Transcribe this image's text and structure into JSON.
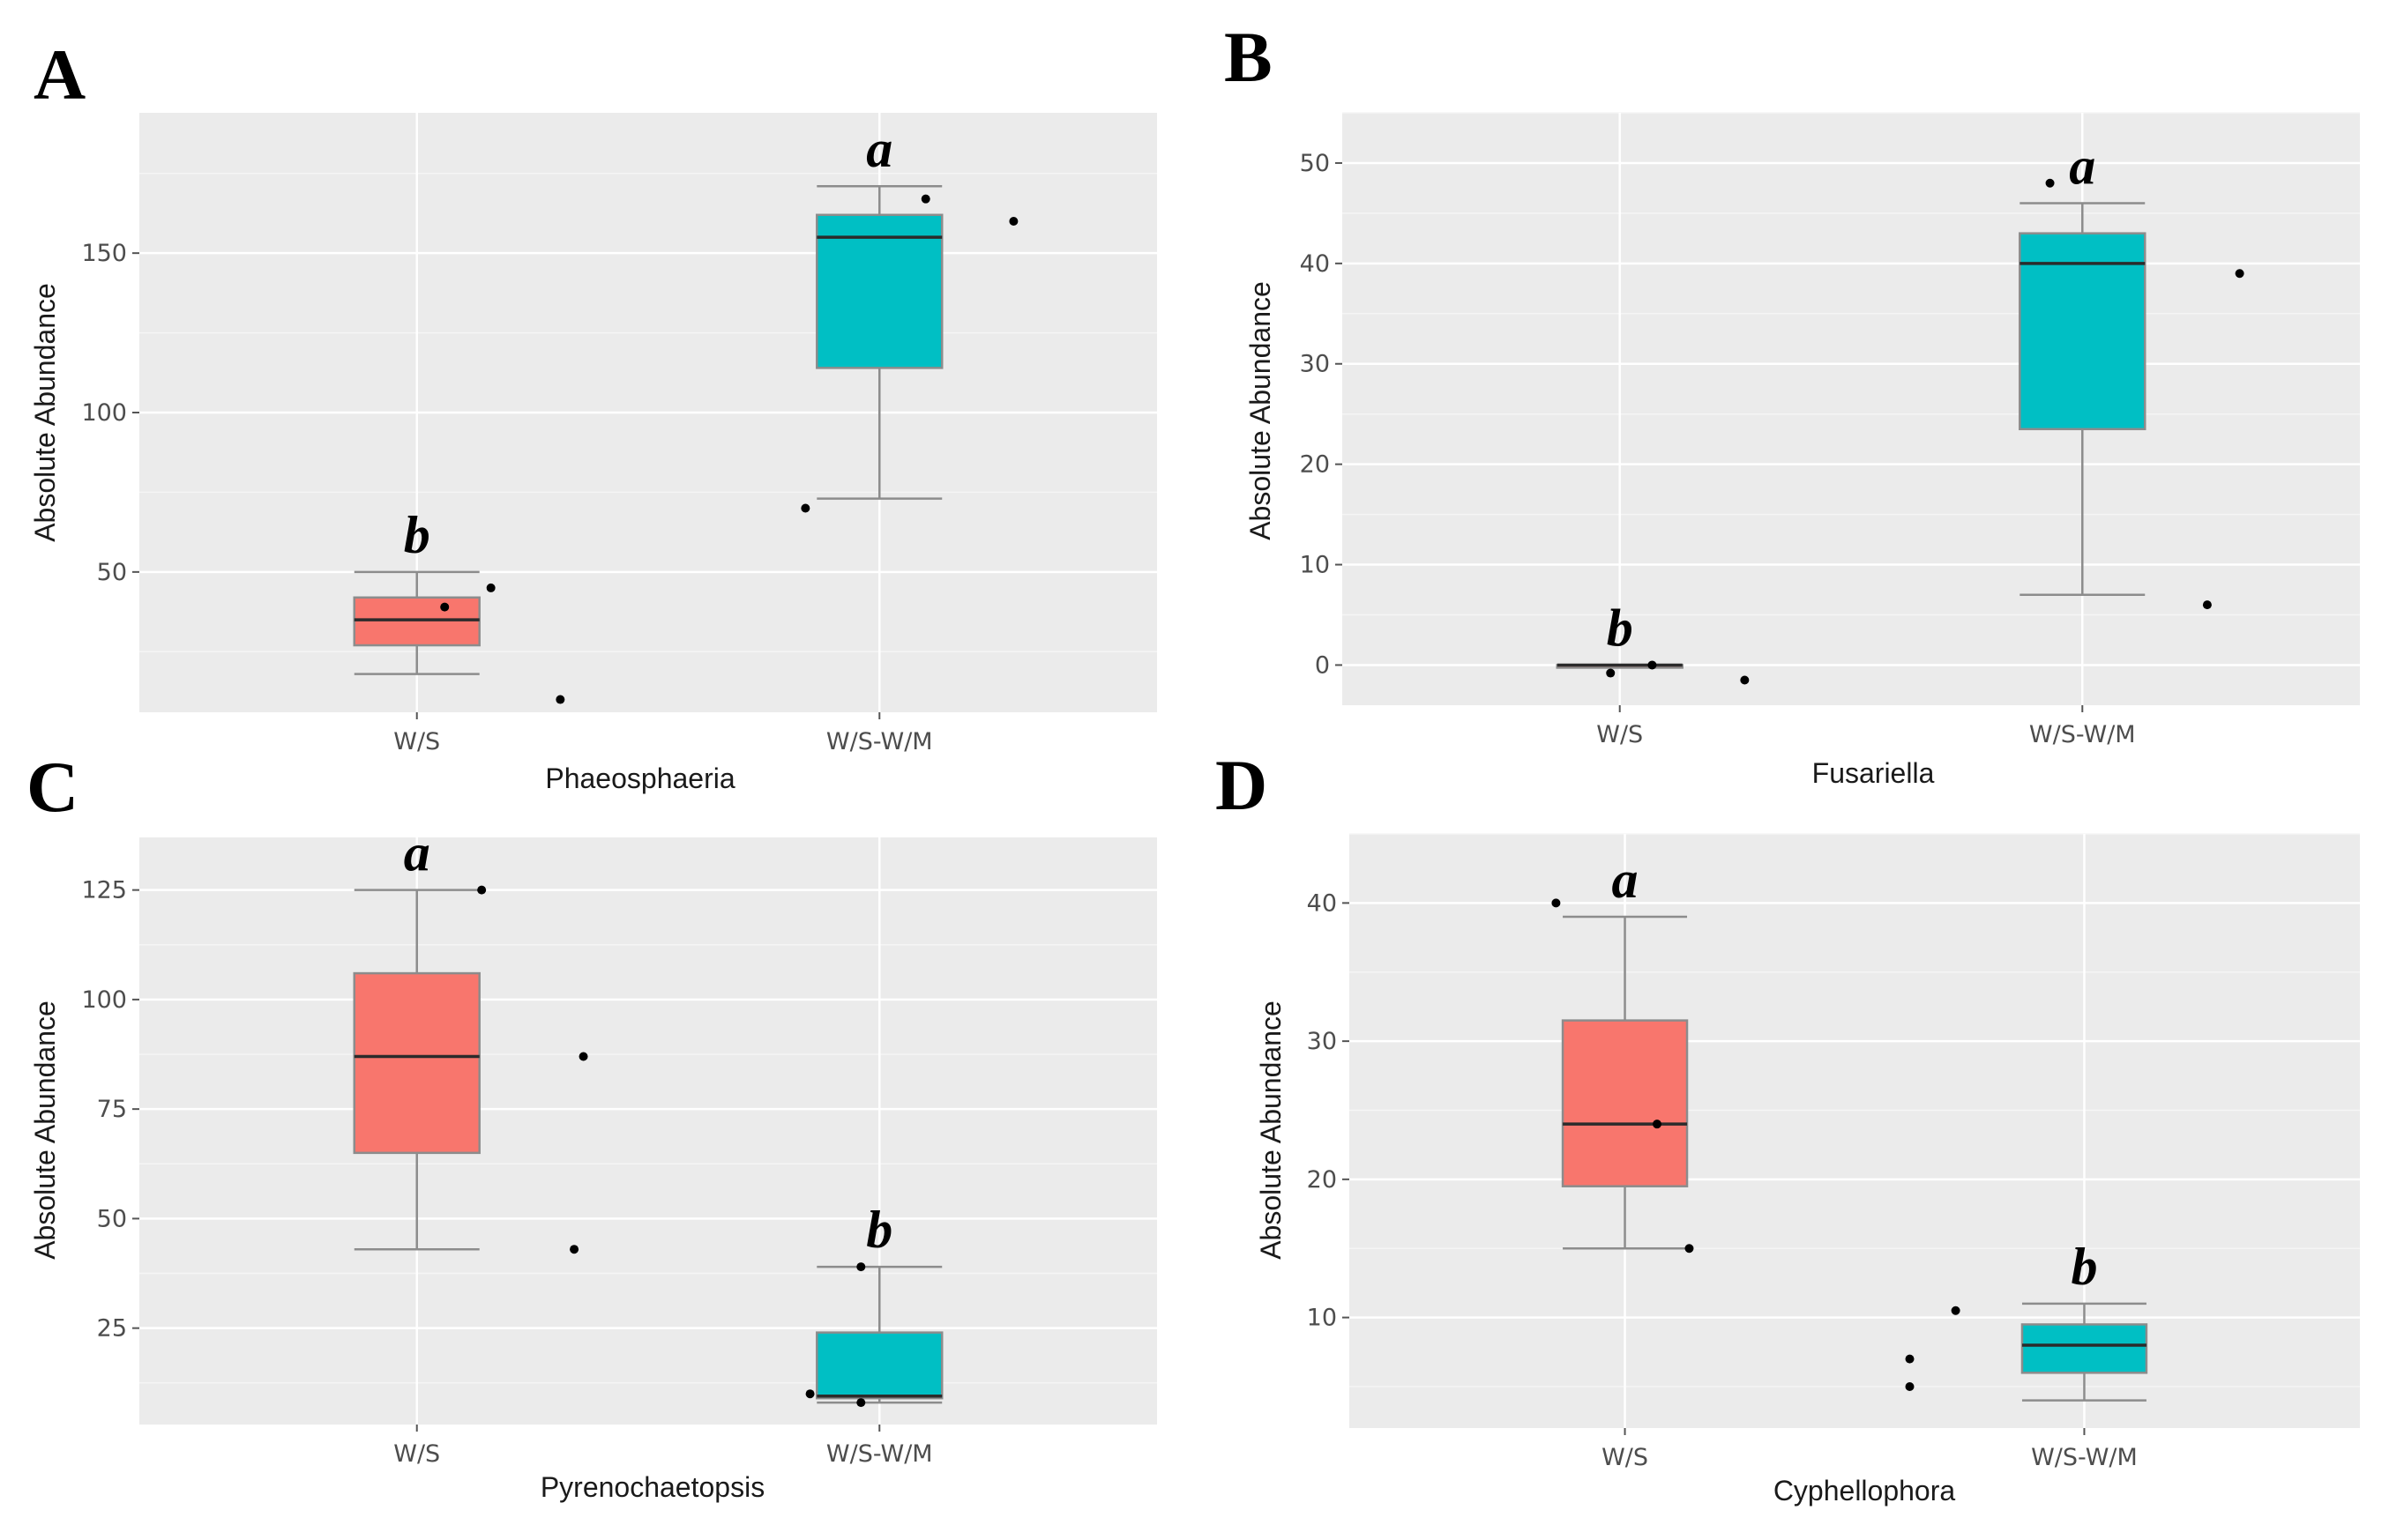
{
  "colors": {
    "panel_bg": "#ebebeb",
    "grid_major": "#ffffff",
    "ws_fill": "#f8766d",
    "wswm_fill": "#00bfc4",
    "box_stroke": "#8c8c8c",
    "median": "#2b2b2b",
    "point": "#000000"
  },
  "chart_data": [
    {
      "panel": "A",
      "type": "box",
      "title": "",
      "xlabel": "Phaeosphaeria",
      "ylabel": "Absolute Abundance",
      "categories": [
        "W/S",
        "W/S-W/M"
      ],
      "ylim": [
        6,
        194
      ],
      "yticks": [
        50,
        100,
        150
      ],
      "boxes": [
        {
          "category": "W/S",
          "fill": "#f8766d",
          "whisker_low": 18,
          "q1": 27,
          "median": 35,
          "q3": 42,
          "whisker_high": 50,
          "sig": "b"
        },
        {
          "category": "W/S-W/M",
          "fill": "#00bfc4",
          "whisker_low": 73,
          "q1": 114,
          "median": 155,
          "q3": 162,
          "whisker_high": 171,
          "sig": "a"
        }
      ],
      "points": [
        {
          "x": 1.06,
          "y": 39
        },
        {
          "x": 1.16,
          "y": 45
        },
        {
          "x": 1.31,
          "y": 10
        },
        {
          "x": 1.84,
          "y": 70
        },
        {
          "x": 2.1,
          "y": 167
        },
        {
          "x": 2.29,
          "y": 160
        }
      ]
    },
    {
      "panel": "B",
      "type": "box",
      "title": "",
      "xlabel": "Fusariella",
      "ylabel": "Absolute Abundance",
      "categories": [
        "W/S",
        "W/S-W/M"
      ],
      "ylim": [
        -4,
        55
      ],
      "yticks": [
        0,
        10,
        20,
        30,
        40,
        50
      ],
      "boxes": [
        {
          "category": "W/S",
          "fill": "#f8766d",
          "whisker_low": 0,
          "q1": 0,
          "median": 0,
          "q3": 0,
          "whisker_high": 0,
          "sig": "b"
        },
        {
          "category": "W/S-W/M",
          "fill": "#00bfc4",
          "whisker_low": 7,
          "q1": 23.5,
          "median": 40,
          "q3": 43,
          "whisker_high": 46,
          "sig": "a"
        }
      ],
      "points": [
        {
          "x": 0.98,
          "y": -0.8
        },
        {
          "x": 1.07,
          "y": 0
        },
        {
          "x": 1.27,
          "y": -1.5
        },
        {
          "x": 1.93,
          "y": 48
        },
        {
          "x": 2.27,
          "y": 6
        },
        {
          "x": 2.34,
          "y": 39
        }
      ]
    },
    {
      "panel": "C",
      "type": "box",
      "title": "",
      "xlabel": "Pyrenochaetopsis",
      "ylabel": "Absolute Abundance",
      "categories": [
        "W/S",
        "W/S-W/M"
      ],
      "ylim": [
        3,
        137
      ],
      "yticks": [
        25,
        50,
        75,
        100,
        125
      ],
      "boxes": [
        {
          "category": "W/S",
          "fill": "#f8766d",
          "whisker_low": 43,
          "q1": 65,
          "median": 87,
          "q3": 106,
          "whisker_high": 125,
          "sig": "a"
        },
        {
          "category": "W/S-W/M",
          "fill": "#00bfc4",
          "whisker_low": 8,
          "q1": 9,
          "median": 9.5,
          "q3": 24,
          "whisker_high": 39,
          "sig": "b"
        }
      ],
      "points": [
        {
          "x": 1.14,
          "y": 125
        },
        {
          "x": 1.34,
          "y": 43
        },
        {
          "x": 1.36,
          "y": 87
        },
        {
          "x": 1.85,
          "y": 10
        },
        {
          "x": 1.96,
          "y": 8
        },
        {
          "x": 1.96,
          "y": 39
        }
      ]
    },
    {
      "panel": "D",
      "type": "box",
      "title": "",
      "xlabel": "Cyphellophora",
      "ylabel": "Absolute Abundance",
      "categories": [
        "W/S",
        "W/S-W/M"
      ],
      "ylim": [
        2,
        45
      ],
      "yticks": [
        10,
        20,
        30,
        40
      ],
      "boxes": [
        {
          "category": "W/S",
          "fill": "#f8766d",
          "whisker_low": 15,
          "q1": 19.5,
          "median": 24,
          "q3": 31.5,
          "whisker_high": 39,
          "sig": "a"
        },
        {
          "category": "W/S-W/M",
          "fill": "#00bfc4",
          "whisker_low": 4,
          "q1": 6,
          "median": 8,
          "q3": 9.5,
          "whisker_high": 11,
          "sig": "b"
        }
      ],
      "points": [
        {
          "x": 0.85,
          "y": 40
        },
        {
          "x": 1.07,
          "y": 24
        },
        {
          "x": 1.14,
          "y": 15
        },
        {
          "x": 1.62,
          "y": 5
        },
        {
          "x": 1.62,
          "y": 7
        },
        {
          "x": 1.72,
          "y": 10.5
        }
      ]
    }
  ]
}
